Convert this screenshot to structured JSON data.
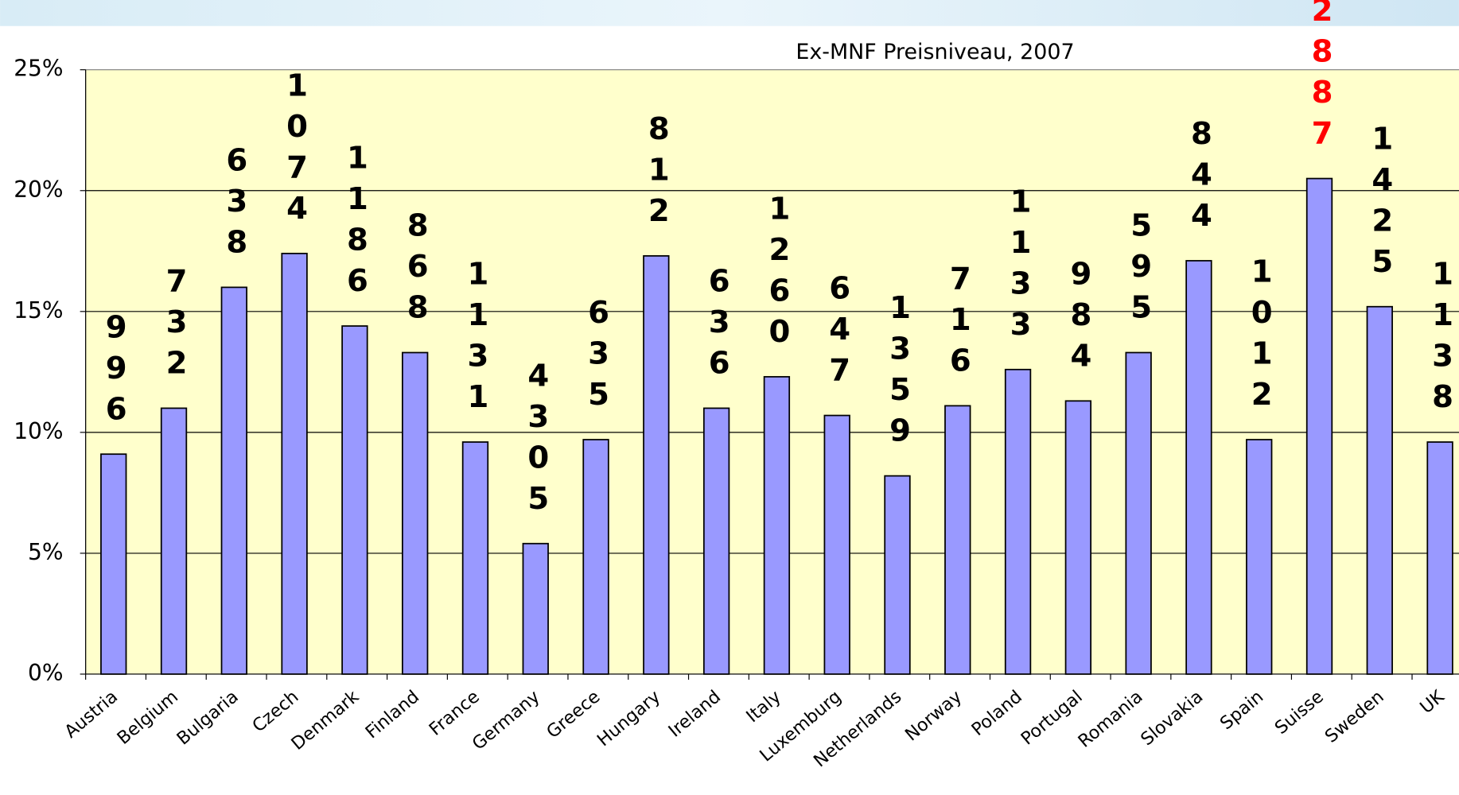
{
  "chart_data": {
    "type": "bar",
    "title": "Ex-MNF Preisniveau, 2007",
    "categories": [
      "Austria",
      "Belgium",
      "Bulgaria",
      "Czech",
      "Denmark",
      "Finland",
      "France",
      "Germany",
      "Greece",
      "Hungary",
      "Ireland",
      "Italy",
      "Luxemburg",
      "Netherlands",
      "Norway",
      "Poland",
      "Portugal",
      "Romania",
      "Slovakia",
      "Spain",
      "Suisse",
      "Sweden",
      "UK"
    ],
    "values": [
      9.1,
      11.0,
      16.0,
      17.4,
      14.4,
      13.3,
      9.6,
      5.4,
      9.7,
      17.3,
      11.0,
      12.3,
      10.7,
      8.2,
      11.1,
      12.6,
      11.3,
      13.3,
      17.1,
      9.7,
      20.5,
      15.2,
      9.6
    ],
    "color": "#9999ff",
    "bar_labels": [
      996,
      732,
      638,
      1074,
      1186,
      868,
      1131,
      4305,
      635,
      812,
      636,
      1260,
      647,
      1359,
      716,
      1133,
      984,
      595,
      844,
      1012,
      2887,
      1425,
      1138
    ],
    "label_colors": [
      "#000000",
      "#000000",
      "#000000",
      "#000000",
      "#000000",
      "#000000",
      "#000000",
      "#000000",
      "#000000",
      "#000000",
      "#000000",
      "#000000",
      "#000000",
      "#000000",
      "#000000",
      "#000000",
      "#000000",
      "#000000",
      "#000000",
      "#000000",
      "#ff0000",
      "#000000",
      "#000000"
    ],
    "ylim": [
      0,
      25
    ],
    "yticks": [
      {
        "value": 0,
        "label": "0%"
      },
      {
        "value": 5,
        "label": "5%"
      },
      {
        "value": 10,
        "label": "10%"
      },
      {
        "value": 15,
        "label": "15%"
      },
      {
        "value": 20,
        "label": "20%"
      },
      {
        "value": 25,
        "label": "25%"
      }
    ],
    "grid": true
  }
}
